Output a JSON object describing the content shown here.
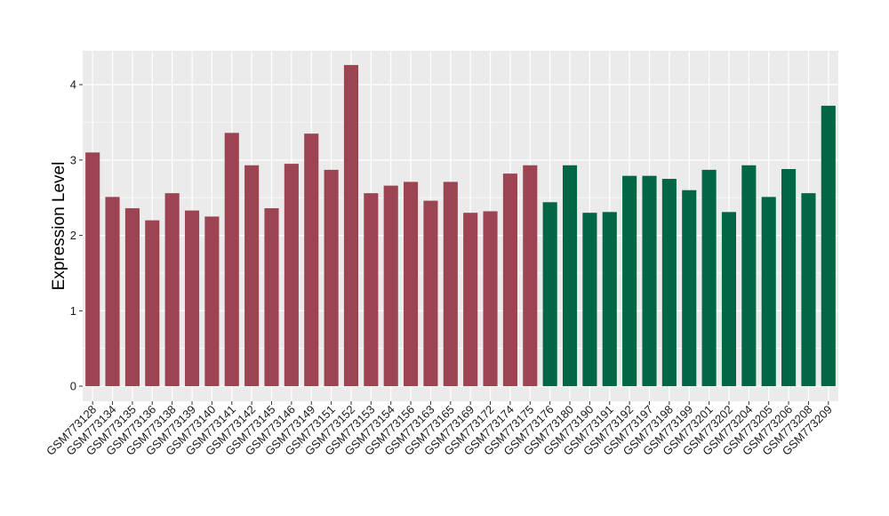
{
  "chart_data": {
    "type": "bar",
    "title": "",
    "xlabel": "",
    "ylabel": "Expression Level",
    "ylim": [
      -0.2,
      4.45
    ],
    "yticks": [
      0,
      1,
      2,
      3,
      4
    ],
    "grid": true,
    "legend": "none",
    "categories": [
      "GSM773128",
      "GSM773134",
      "GSM773135",
      "GSM773136",
      "GSM773138",
      "GSM773139",
      "GSM773140",
      "GSM773141",
      "GSM773142",
      "GSM773145",
      "GSM773146",
      "GSM773149",
      "GSM773151",
      "GSM773152",
      "GSM773153",
      "GSM773154",
      "GSM773156",
      "GSM773163",
      "GSM773165",
      "GSM773169",
      "GSM773172",
      "GSM773174",
      "GSM773175",
      "GSM773176",
      "GSM773180",
      "GSM773190",
      "GSM773191",
      "GSM773192",
      "GSM773197",
      "GSM773198",
      "GSM773199",
      "GSM773201",
      "GSM773202",
      "GSM773204",
      "GSM773205",
      "GSM773206",
      "GSM773208",
      "GSM773209"
    ],
    "values": [
      3.1,
      2.51,
      2.36,
      2.2,
      2.56,
      2.33,
      2.25,
      3.36,
      2.93,
      2.36,
      2.95,
      3.35,
      2.87,
      4.26,
      2.56,
      2.66,
      2.71,
      2.46,
      2.71,
      2.3,
      2.32,
      2.82,
      2.93,
      2.44,
      2.93,
      2.3,
      2.31,
      2.79,
      2.79,
      2.75,
      2.6,
      2.87,
      2.31,
      2.93,
      2.51,
      2.88,
      2.56,
      3.72
    ],
    "group_index": [
      0,
      0,
      0,
      0,
      0,
      0,
      0,
      0,
      0,
      0,
      0,
      0,
      0,
      0,
      0,
      0,
      0,
      0,
      0,
      0,
      0,
      0,
      0,
      1,
      1,
      1,
      1,
      1,
      1,
      1,
      1,
      1,
      1,
      1,
      1,
      1,
      1,
      1
    ],
    "group_colors": [
      "#9c4452",
      "#006646"
    ],
    "panel_background": "#ebebeb",
    "grid_color": "#ffffff"
  }
}
